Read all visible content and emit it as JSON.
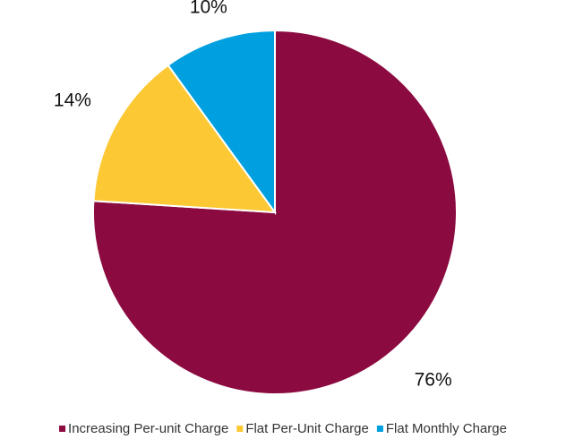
{
  "chart_data": {
    "type": "pie",
    "categories": [
      "Increasing Per-unit Charge",
      "Flat Per-Unit Charge",
      "Flat Monthly Charge"
    ],
    "values": [
      76,
      14,
      10
    ],
    "value_labels": [
      "76%",
      "14%",
      "10%"
    ],
    "colors": [
      "#8b0a3f",
      "#fcc934",
      "#00a0e0"
    ],
    "legend": "bottom"
  }
}
